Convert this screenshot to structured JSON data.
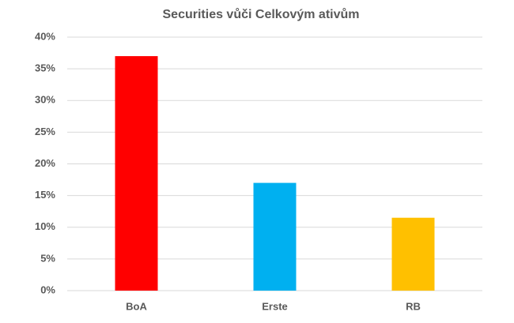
{
  "chart_data": {
    "type": "bar",
    "title": "Securities vůči Celkovým ativům",
    "categories": [
      "BoA",
      "Erste",
      "RB"
    ],
    "values": [
      37,
      17,
      11.5
    ],
    "colors": [
      "#ff0000",
      "#00b0f0",
      "#ffc000"
    ],
    "ylim": [
      0,
      40
    ],
    "yticks": [
      {
        "value": 0,
        "label": "0%"
      },
      {
        "value": 5,
        "label": "5%"
      },
      {
        "value": 10,
        "label": "10%"
      },
      {
        "value": 15,
        "label": "15%"
      },
      {
        "value": 20,
        "label": "20%"
      },
      {
        "value": 25,
        "label": "25%"
      },
      {
        "value": 30,
        "label": "30%"
      },
      {
        "value": 35,
        "label": "35%"
      },
      {
        "value": 40,
        "label": "40%"
      }
    ],
    "grid": true
  }
}
